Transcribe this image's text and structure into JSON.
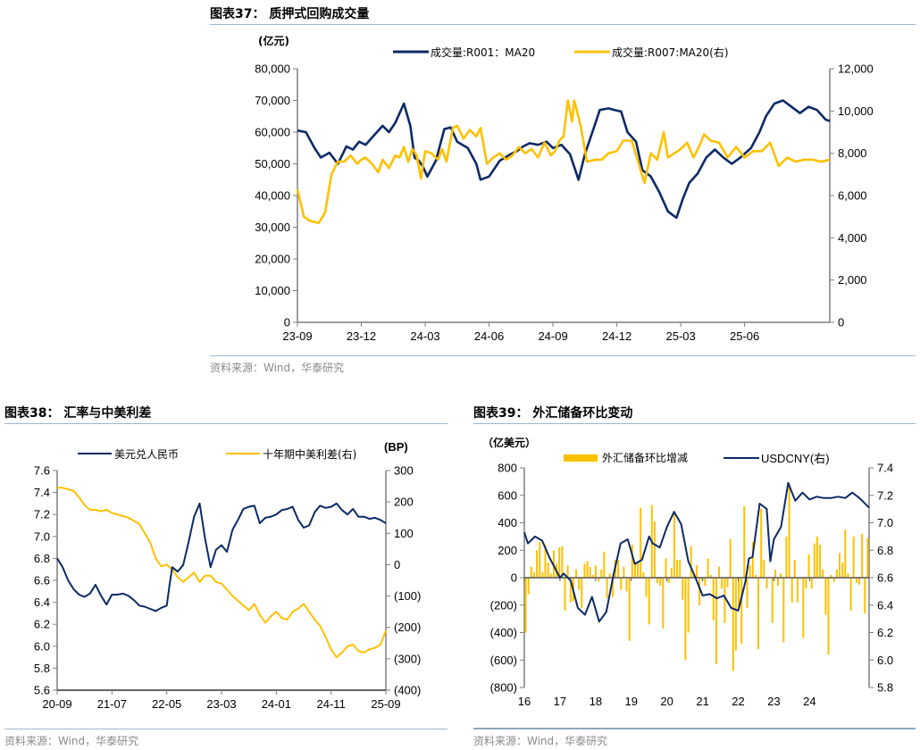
{
  "colors": {
    "navy": "#0b2a66",
    "gold": "#ffc000",
    "axis": "#7f7f7f"
  },
  "source_text": "资料来源：Wind，华泰研究",
  "chart_data": [
    {
      "id": "fig37",
      "title": "图表37：  质押式回购成交量",
      "type": "line",
      "y_unit_label": "(亿元)",
      "legend_position": "top",
      "x_ticks": [
        "23-09",
        "23-12",
        "24-03",
        "24-06",
        "24-09",
        "24-12",
        "25-03",
        "25-06"
      ],
      "ylim_left": [
        0,
        80000
      ],
      "yticks_left": [
        "0",
        "10,000",
        "20,000",
        "30,000",
        "40,000",
        "50,000",
        "60,000",
        "70,000",
        "80,000"
      ],
      "ylim_right": [
        0,
        12000
      ],
      "yticks_right": [
        "0",
        "2,000",
        "4,000",
        "6,000",
        "8,000",
        "10,000",
        "12,000"
      ],
      "x_range_months": [
        0,
        25
      ],
      "series": [
        {
          "name": "成交量:R001：MA20",
          "axis": "left",
          "color": "#0b2a66",
          "x": [
            0,
            0.4,
            0.8,
            1.1,
            1.5,
            1.9,
            2.3,
            2.6,
            2.9,
            3.2,
            3.6,
            4.0,
            4.3,
            4.6,
            5.0,
            5.3,
            5.5,
            5.7,
            5.9,
            6.1,
            6.5,
            6.9,
            7.2,
            7.5,
            8.0,
            8.4,
            8.6,
            9.0,
            9.5,
            10.0,
            10.3,
            10.6,
            10.9,
            11.3,
            11.7,
            12.0,
            12.4,
            12.8,
            13.2,
            13.5,
            13.9,
            14.2,
            14.6,
            14.9,
            15.2,
            15.5,
            15.9,
            16.2,
            16.6,
            17.0,
            17.4,
            17.8,
            18.1,
            18.4,
            18.8,
            19.2,
            19.6,
            20.0,
            20.4,
            20.8,
            21.3,
            21.7,
            22.0,
            22.4,
            22.8,
            23.2,
            23.6,
            24.0,
            24.4,
            24.8,
            25.0
          ],
          "values": [
            60500,
            60000,
            55000,
            52000,
            53500,
            50000,
            55500,
            54500,
            57000,
            56000,
            59000,
            62000,
            60000,
            63000,
            69000,
            62000,
            52000,
            51000,
            49000,
            46000,
            51000,
            61000,
            61500,
            57000,
            55000,
            50000,
            45000,
            46000,
            51000,
            53000,
            54000,
            55500,
            56500,
            56000,
            57000,
            55000,
            56000,
            53000,
            45000,
            53000,
            61000,
            67000,
            67500,
            67000,
            66500,
            60000,
            57000,
            48000,
            46000,
            41000,
            35000,
            33000,
            39000,
            44000,
            47000,
            52000,
            54500,
            52000,
            50000,
            52000,
            55000,
            60000,
            65000,
            69000,
            70000,
            68000,
            66000,
            68000,
            67000,
            64000,
            63500
          ]
        },
        {
          "name": "成交量:R007:MA20(右)",
          "axis": "right",
          "color": "#ffc000",
          "x": [
            0,
            0.3,
            0.6,
            1.0,
            1.3,
            1.6,
            1.9,
            2.2,
            2.5,
            2.8,
            3.0,
            3.2,
            3.5,
            3.8,
            4.0,
            4.3,
            4.6,
            4.8,
            5.0,
            5.2,
            5.4,
            5.6,
            5.8,
            6.0,
            6.3,
            6.6,
            6.8,
            7.0,
            7.3,
            7.5,
            7.8,
            8.1,
            8.4,
            8.6,
            8.9,
            9.2,
            9.5,
            9.8,
            10.1,
            10.4,
            10.7,
            11.0,
            11.3,
            11.6,
            11.9,
            12.1,
            12.3,
            12.5,
            12.7,
            12.9,
            13.0,
            13.3,
            13.6,
            14.0,
            14.3,
            14.6,
            15.0,
            15.3,
            15.7,
            16.0,
            16.3,
            16.6,
            16.9,
            17.2,
            17.4,
            17.7,
            18.0,
            18.3,
            18.6,
            18.9,
            19.1,
            19.4,
            19.8,
            20.2,
            20.6,
            21.0,
            21.4,
            21.8,
            22.2,
            22.6,
            23.0,
            23.4,
            23.8,
            24.2,
            24.6,
            25.0
          ],
          "values": [
            6300,
            5000,
            4800,
            4700,
            5200,
            7000,
            7600,
            7600,
            7900,
            7500,
            7700,
            7800,
            7500,
            7100,
            7700,
            7300,
            7900,
            7800,
            8300,
            7600,
            8200,
            7900,
            6800,
            8100,
            8000,
            7700,
            8200,
            7600,
            9200,
            9300,
            8700,
            9100,
            8800,
            9200,
            7500,
            7800,
            8000,
            7700,
            7900,
            8300,
            8000,
            8200,
            7800,
            8500,
            7900,
            8100,
            8600,
            8800,
            10500,
            9500,
            10500,
            9300,
            7600,
            7700,
            7700,
            8000,
            8100,
            8600,
            8600,
            7600,
            6600,
            8000,
            7700,
            9000,
            7800,
            8000,
            8200,
            8500,
            7800,
            8400,
            8900,
            8600,
            8500,
            7800,
            8300,
            7800,
            8100,
            8100,
            8500,
            7400,
            7800,
            7600,
            7700,
            7700,
            7600,
            7700
          ]
        }
      ]
    },
    {
      "id": "fig38",
      "title": "图表38：  汇率与中美利差",
      "type": "line",
      "y_unit_label_right": "(BP)",
      "legend_position": "top",
      "x_ticks": [
        "20-09",
        "21-07",
        "22-05",
        "23-03",
        "24-01",
        "24-11",
        "25-09"
      ],
      "x_range_months": [
        0,
        60
      ],
      "ylim_left": [
        5.6,
        7.6
      ],
      "yticks_left": [
        "5.6",
        "5.8",
        "6.0",
        "6.2",
        "6.4",
        "6.6",
        "6.8",
        "7.0",
        "7.2",
        "7.4",
        "7.6"
      ],
      "ylim_right": [
        -400,
        300
      ],
      "yticks_right": [
        "(400)",
        "(300)",
        "(200)",
        "(100)",
        "0",
        "100",
        "200",
        "300"
      ],
      "series": [
        {
          "name": "美元兑人民币",
          "axis": "left",
          "color": "#0b2a66",
          "x": [
            0,
            1,
            2,
            3,
            4,
            5,
            6,
            7,
            8,
            9,
            10,
            11,
            12,
            13,
            14,
            15,
            16,
            17,
            18,
            19,
            20,
            20.5,
            21,
            22,
            23,
            24,
            25,
            26,
            27,
            28,
            29,
            30,
            31,
            32,
            33,
            34,
            35,
            36,
            37,
            38,
            39,
            40,
            41,
            42,
            43,
            44,
            45,
            46,
            47,
            48,
            49,
            50,
            51,
            52,
            53,
            54,
            55,
            56,
            57,
            58,
            59,
            60
          ],
          "values": [
            6.8,
            6.72,
            6.6,
            6.52,
            6.47,
            6.45,
            6.48,
            6.56,
            6.46,
            6.38,
            6.47,
            6.47,
            6.48,
            6.46,
            6.42,
            6.37,
            6.36,
            6.34,
            6.32,
            6.35,
            6.37,
            6.55,
            6.72,
            6.68,
            6.74,
            6.95,
            7.18,
            7.3,
            6.98,
            6.72,
            6.88,
            6.92,
            6.86,
            7.06,
            7.15,
            7.25,
            7.27,
            7.28,
            7.12,
            7.17,
            7.18,
            7.2,
            7.24,
            7.25,
            7.27,
            7.15,
            7.08,
            7.1,
            7.22,
            7.28,
            7.26,
            7.27,
            7.3,
            7.24,
            7.2,
            7.25,
            7.18,
            7.18,
            7.16,
            7.17,
            7.15,
            7.12
          ]
        },
        {
          "name": "十年期中美利差(右)",
          "axis": "right",
          "color": "#ffc000",
          "x": [
            0,
            1,
            2,
            3,
            4,
            5,
            6,
            7,
            8,
            9,
            10,
            11,
            12,
            13,
            14,
            15,
            16,
            17,
            18,
            19,
            20,
            21,
            22,
            23,
            24,
            25,
            26,
            27,
            28,
            29,
            30,
            31,
            32,
            33,
            34,
            35,
            36,
            37,
            38,
            39,
            40,
            41,
            42,
            43,
            44,
            45,
            46,
            47,
            48,
            49,
            50,
            51,
            52,
            53,
            54,
            55,
            56,
            57,
            58,
            59,
            60
          ],
          "values": [
            245,
            245,
            240,
            235,
            215,
            190,
            175,
            175,
            170,
            175,
            165,
            160,
            155,
            150,
            140,
            130,
            100,
            70,
            20,
            -5,
            0,
            -15,
            -40,
            -55,
            -40,
            -25,
            -55,
            -35,
            -35,
            -55,
            -60,
            -80,
            -100,
            -115,
            -130,
            -145,
            -125,
            -160,
            -185,
            -165,
            -150,
            -170,
            -175,
            -150,
            -140,
            -125,
            -150,
            -175,
            -195,
            -230,
            -270,
            -295,
            -280,
            -260,
            -255,
            -275,
            -280,
            -270,
            -265,
            -255,
            -210
          ]
        }
      ]
    },
    {
      "id": "fig39",
      "title": "图表39：  外汇储备环比变动",
      "type": "bar+line",
      "y_unit_label": "（亿美元）",
      "legend_position": "top",
      "x_ticks": [
        "16",
        "17",
        "18",
        "19",
        "20",
        "21",
        "22",
        "23",
        "24"
      ],
      "x_range_years": [
        2016,
        2025.67
      ],
      "ylim_left": [
        -800,
        800
      ],
      "yticks_left": [
        "(800)",
        "(600)",
        "(400)",
        "(200)",
        "0",
        "200",
        "400",
        "600",
        "800"
      ],
      "ylim_right": [
        5.8,
        7.4
      ],
      "yticks_right": [
        "5.8",
        "6.0",
        "6.2",
        "6.4",
        "6.6",
        "6.8",
        "7.0",
        "7.2",
        "7.4"
      ],
      "series": [
        {
          "name": "外汇储备环比增减",
          "axis": "left",
          "type": "bar",
          "color": "#ffc000",
          "values": [
            -400,
            -120,
            80,
            40,
            200,
            260,
            40,
            240,
            110,
            30,
            200,
            100,
            220,
            230,
            -240,
            90,
            -180,
            -170,
            60,
            -90,
            -220,
            100,
            120,
            80,
            20,
            90,
            -30,
            60,
            190,
            -150,
            30,
            -140,
            130,
            130,
            -90,
            80,
            -100,
            -460,
            240,
            110,
            110,
            510,
            40,
            -140,
            -340,
            530,
            410,
            -40,
            -60,
            -370,
            140,
            -40,
            70,
            470,
            130,
            130,
            -160,
            -600,
            -400,
            230,
            30,
            90,
            -200,
            -20,
            -60,
            140,
            20,
            -310,
            -630,
            80,
            -80,
            -330,
            -70,
            280,
            -680,
            -530,
            -220,
            -480,
            520,
            -220,
            90,
            260,
            20,
            -520,
            500,
            130,
            -80,
            -1,
            -330,
            60,
            -60,
            30,
            -470,
            300,
            690,
            -180,
            130,
            -180,
            -10,
            -440,
            -80,
            170,
            -80,
            250,
            300,
            240,
            60,
            -270,
            -560,
            20,
            -30,
            60,
            180,
            110,
            350,
            30,
            -240,
            300,
            -40,
            -50,
            320,
            -260,
            290
          ]
        },
        {
          "name": "USDCNY(右)",
          "axis": "right",
          "type": "line",
          "color": "#0b2a66",
          "x": [
            2016,
            2016.1,
            2016.3,
            2016.5,
            2016.7,
            2016.9,
            2017,
            2017.1,
            2017.3,
            2017.5,
            2017.7,
            2017.9,
            2018.1,
            2018.3,
            2018.5,
            2018.7,
            2018.9,
            2019.1,
            2019.3,
            2019.5,
            2019.6,
            2019.8,
            2020.0,
            2020.2,
            2020.4,
            2020.6,
            2020.8,
            2021.0,
            2021.2,
            2021.4,
            2021.6,
            2021.8,
            2022.0,
            2022.2,
            2022.3,
            2022.4,
            2022.6,
            2022.8,
            2022.9,
            2023.0,
            2023.2,
            2023.4,
            2023.6,
            2023.8,
            2024.0,
            2024.2,
            2024.4,
            2024.6,
            2024.8,
            2025.0,
            2025.2,
            2025.4,
            2025.67
          ],
          "values": [
            6.93,
            6.85,
            6.9,
            6.87,
            6.75,
            6.65,
            6.6,
            6.63,
            6.58,
            6.38,
            6.33,
            6.46,
            6.28,
            6.35,
            6.62,
            6.85,
            6.88,
            6.7,
            6.73,
            6.9,
            6.85,
            6.82,
            6.97,
            7.08,
            6.99,
            6.72,
            6.6,
            6.47,
            6.48,
            6.45,
            6.47,
            6.38,
            6.36,
            6.57,
            6.74,
            6.75,
            7.14,
            7.1,
            6.72,
            6.88,
            6.97,
            7.29,
            7.16,
            7.22,
            7.17,
            7.19,
            7.18,
            7.18,
            7.19,
            7.18,
            7.22,
            7.18,
            7.11
          ]
        }
      ]
    }
  ]
}
